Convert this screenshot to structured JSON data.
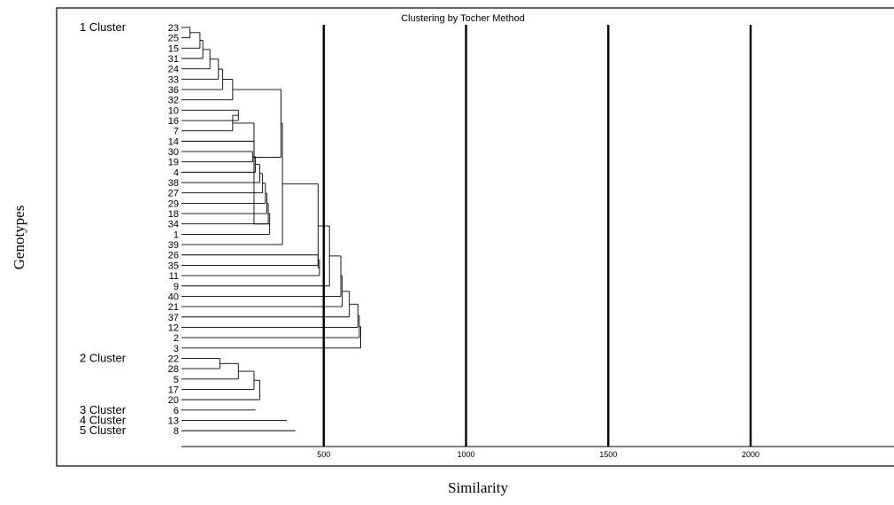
{
  "chart_data": {
    "type": "dendrogram",
    "title": "Clustering by Tocher Method",
    "xlabel": "Similarity",
    "ylabel": "Genotypes",
    "x_ticks": [
      500,
      1000,
      1500,
      2000
    ],
    "xlim": [
      0,
      2000
    ],
    "vertical_reference_lines": [
      500,
      1000,
      1500,
      2000
    ],
    "leaf_order": [
      "23",
      "25",
      "15",
      "31",
      "24",
      "33",
      "36",
      "32",
      "10",
      "16",
      "7",
      "14",
      "30",
      "19",
      "4",
      "38",
      "27",
      "29",
      "18",
      "34",
      "1",
      "39",
      "26",
      "35",
      "11",
      "9",
      "40",
      "21",
      "37",
      "12",
      "2",
      "3",
      "22",
      "28",
      "5",
      "17",
      "20",
      "6",
      "13",
      "8"
    ],
    "clusters": [
      {
        "label": "1 Cluster",
        "first_leaf": "23"
      },
      {
        "label": "2 Cluster",
        "first_leaf": "22"
      },
      {
        "label": "3 Cluster",
        "first_leaf": "6"
      },
      {
        "label": "4 Cluster",
        "first_leaf": "13"
      },
      {
        "label": "5 Cluster",
        "first_leaf": "8"
      }
    ],
    "merges": [
      {
        "a": "23",
        "b": "25",
        "height": 30
      },
      {
        "a": "m1",
        "b": "15",
        "height": 65
      },
      {
        "a": "m2",
        "b": "31",
        "height": 75
      },
      {
        "a": "m3",
        "b": "24",
        "height": 100
      },
      {
        "a": "m4",
        "b": "33",
        "height": 130
      },
      {
        "a": "m5",
        "b": "36",
        "height": 145
      },
      {
        "a": "m6",
        "b": "32",
        "height": 180
      },
      {
        "a": "10",
        "b": "16",
        "height": 200
      },
      {
        "a": "m8",
        "b": "7",
        "height": 180
      },
      {
        "a": "30",
        "b": "19",
        "height": 250
      },
      {
        "a": "m10",
        "b": "4",
        "height": 260
      },
      {
        "a": "m11",
        "b": "38",
        "height": 275
      },
      {
        "a": "m12",
        "b": "27",
        "height": 285
      },
      {
        "a": "m13",
        "b": "29",
        "height": 295
      },
      {
        "a": "m14",
        "b": "18",
        "height": 300
      },
      {
        "a": "m15",
        "b": "34",
        "height": 305
      },
      {
        "a": "m16",
        "b": "1",
        "height": 310
      },
      {
        "a": "m17",
        "b": "m9",
        "height": 255
      },
      {
        "a": "m18",
        "b": "14",
        "height": 255
      },
      {
        "a": "m19",
        "b": "m7",
        "height": 350
      },
      {
        "a": "m20",
        "b": "39",
        "height": 355
      },
      {
        "a": "26",
        "b": "35",
        "height": 480
      },
      {
        "a": "m22",
        "b": "11",
        "height": 485
      },
      {
        "a": "m23",
        "b": "m21",
        "height": 480
      },
      {
        "a": "m24",
        "b": "9",
        "height": 520
      },
      {
        "a": "m25",
        "b": "40",
        "height": 560
      },
      {
        "a": "m26",
        "b": "21",
        "height": 565
      },
      {
        "a": "m27",
        "b": "37",
        "height": 590
      },
      {
        "a": "m28",
        "b": "12",
        "height": 620
      },
      {
        "a": "m29",
        "b": "2",
        "height": 625
      },
      {
        "a": "m30",
        "b": "3",
        "height": 630
      },
      {
        "a": "22",
        "b": "28",
        "height": 135
      },
      {
        "a": "m32",
        "b": "5",
        "height": 200
      },
      {
        "a": "m33",
        "b": "17",
        "height": 255
      },
      {
        "a": "m34",
        "b": "20",
        "height": 275
      }
    ],
    "singletons": [
      {
        "leaf": "6",
        "height": 260
      },
      {
        "leaf": "13",
        "height": 370
      },
      {
        "leaf": "8",
        "height": 400
      }
    ]
  }
}
